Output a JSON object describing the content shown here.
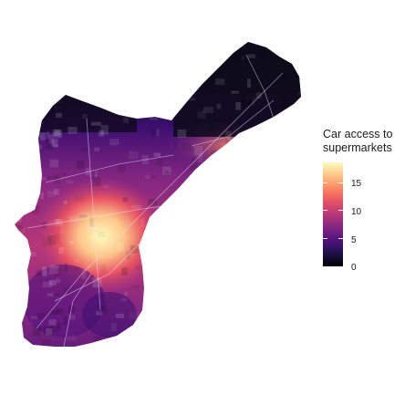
{
  "legend": {
    "title_line1": "Car access to",
    "title_line2": "supermarkets",
    "ticks": [
      "15",
      "10",
      "5",
      "0"
    ],
    "tick_values": [
      15,
      10,
      5,
      0
    ],
    "range": [
      0,
      18.5
    ],
    "palette": [
      "#000004",
      "#1d1147",
      "#51127c",
      "#822681",
      "#b73779",
      "#e75263",
      "#fc8961",
      "#fec488",
      "#fcfdbf"
    ]
  },
  "map": {
    "region_shape": "city outline",
    "background": "#ffffff",
    "low_color": "#0d0a1a",
    "high_color": "#fcfdbf",
    "road_color": "#e8e2ff"
  }
}
